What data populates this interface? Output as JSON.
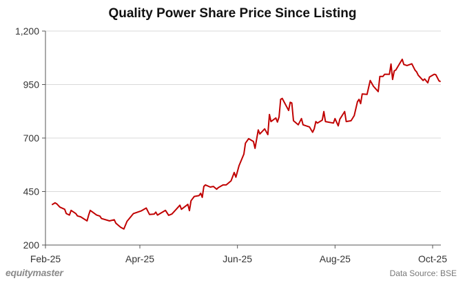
{
  "chart_data": {
    "type": "line",
    "title": "Quality Power Share Price Since Listing",
    "xlabel": "",
    "ylabel": "",
    "ylim": [
      200,
      1200
    ],
    "yticks": [
      "200",
      "450",
      "700",
      "950",
      "1,200"
    ],
    "ytick_values": [
      200,
      450,
      700,
      950,
      1200
    ],
    "xticks": [
      "Feb-25",
      "Apr-25",
      "Jun-25",
      "Aug-25",
      "Oct-25"
    ],
    "xtick_dates": [
      "2025-02-01",
      "2025-04-01",
      "2025-06-01",
      "2025-08-01",
      "2025-10-01"
    ],
    "grid": "horizontal",
    "line_color": "#c00000",
    "series": [
      {
        "points": [
          [
            "2025-02-05",
            388
          ],
          [
            "2025-02-07",
            397
          ],
          [
            "2025-02-08",
            393
          ],
          [
            "2025-02-10",
            377
          ],
          [
            "2025-02-13",
            367
          ],
          [
            "2025-02-14",
            347
          ],
          [
            "2025-02-16",
            340
          ],
          [
            "2025-02-17",
            362
          ],
          [
            "2025-02-20",
            347
          ],
          [
            "2025-02-21",
            336
          ],
          [
            "2025-02-23",
            332
          ],
          [
            "2025-02-27",
            313
          ],
          [
            "2025-02-28",
            340
          ],
          [
            "2025-03-01",
            362
          ],
          [
            "2025-03-05",
            340
          ],
          [
            "2025-03-07",
            335
          ],
          [
            "2025-03-08",
            324
          ],
          [
            "2025-03-13",
            313
          ],
          [
            "2025-03-16",
            318
          ],
          [
            "2025-03-17",
            302
          ],
          [
            "2025-03-20",
            283
          ],
          [
            "2025-03-22",
            275
          ],
          [
            "2025-03-24",
            311
          ],
          [
            "2025-03-28",
            347
          ],
          [
            "2025-04-02",
            360
          ],
          [
            "2025-04-05",
            373
          ],
          [
            "2025-04-07",
            343
          ],
          [
            "2025-04-10",
            345
          ],
          [
            "2025-04-11",
            354
          ],
          [
            "2025-04-12",
            340
          ],
          [
            "2025-04-17",
            362
          ],
          [
            "2025-04-19",
            339
          ],
          [
            "2025-04-21",
            345
          ],
          [
            "2025-04-24",
            369
          ],
          [
            "2025-04-26",
            386
          ],
          [
            "2025-04-27",
            367
          ],
          [
            "2025-05-01",
            390
          ],
          [
            "2025-05-02",
            361
          ],
          [
            "2025-05-03",
            407
          ],
          [
            "2025-05-05",
            427
          ],
          [
            "2025-05-08",
            431
          ],
          [
            "2025-05-09",
            442
          ],
          [
            "2025-05-10",
            423
          ],
          [
            "2025-05-11",
            474
          ],
          [
            "2025-05-12",
            481
          ],
          [
            "2025-05-15",
            471
          ],
          [
            "2025-05-17",
            474
          ],
          [
            "2025-05-19",
            461
          ],
          [
            "2025-05-20",
            468
          ],
          [
            "2025-05-23",
            481
          ],
          [
            "2025-05-25",
            481
          ],
          [
            "2025-05-28",
            500
          ],
          [
            "2025-05-30",
            539
          ],
          [
            "2025-05-31",
            517
          ],
          [
            "2025-06-02",
            571
          ],
          [
            "2025-06-05",
            625
          ],
          [
            "2025-06-06",
            676
          ],
          [
            "2025-06-08",
            697
          ],
          [
            "2025-06-11",
            684
          ],
          [
            "2025-06-12",
            652
          ],
          [
            "2025-06-14",
            738
          ],
          [
            "2025-06-15",
            719
          ],
          [
            "2025-06-18",
            743
          ],
          [
            "2025-06-20",
            716
          ],
          [
            "2025-06-21",
            810
          ],
          [
            "2025-06-22",
            777
          ],
          [
            "2025-06-25",
            794
          ],
          [
            "2025-06-26",
            775
          ],
          [
            "2025-06-27",
            799
          ],
          [
            "2025-06-28",
            881
          ],
          [
            "2025-06-29",
            885
          ],
          [
            "2025-07-03",
            829
          ],
          [
            "2025-07-04",
            867
          ],
          [
            "2025-07-05",
            864
          ],
          [
            "2025-07-06",
            781
          ],
          [
            "2025-07-09",
            762
          ],
          [
            "2025-07-11",
            791
          ],
          [
            "2025-07-12",
            762
          ],
          [
            "2025-07-16",
            752
          ],
          [
            "2025-07-18",
            727
          ],
          [
            "2025-07-19",
            743
          ],
          [
            "2025-07-20",
            777
          ],
          [
            "2025-07-21",
            770
          ],
          [
            "2025-07-24",
            784
          ],
          [
            "2025-07-25",
            824
          ],
          [
            "2025-07-26",
            777
          ],
          [
            "2025-07-31",
            770
          ],
          [
            "2025-08-01",
            791
          ],
          [
            "2025-08-03",
            757
          ],
          [
            "2025-08-04",
            788
          ],
          [
            "2025-08-07",
            824
          ],
          [
            "2025-08-08",
            777
          ],
          [
            "2025-08-11",
            781
          ],
          [
            "2025-08-13",
            805
          ],
          [
            "2025-08-15",
            870
          ],
          [
            "2025-08-16",
            881
          ],
          [
            "2025-08-17",
            861
          ],
          [
            "2025-08-18",
            906
          ],
          [
            "2025-08-21",
            904
          ],
          [
            "2025-08-23",
            969
          ],
          [
            "2025-08-25",
            942
          ],
          [
            "2025-08-28",
            917
          ],
          [
            "2025-08-29",
            988
          ],
          [
            "2025-08-31",
            988
          ],
          [
            "2025-09-01",
            998
          ],
          [
            "2025-09-04",
            998
          ],
          [
            "2025-09-05",
            1046
          ],
          [
            "2025-09-06",
            974
          ],
          [
            "2025-09-07",
            1014
          ],
          [
            "2025-09-08",
            1018
          ],
          [
            "2025-09-12",
            1068
          ],
          [
            "2025-09-13",
            1044
          ],
          [
            "2025-09-15",
            1039
          ],
          [
            "2025-09-18",
            1047
          ],
          [
            "2025-09-20",
            1017
          ],
          [
            "2025-09-21",
            1009
          ],
          [
            "2025-09-22",
            994
          ],
          [
            "2025-09-25",
            969
          ],
          [
            "2025-09-26",
            976
          ],
          [
            "2025-09-28",
            958
          ],
          [
            "2025-09-29",
            985
          ],
          [
            "2025-10-02",
            998
          ],
          [
            "2025-10-03",
            996
          ],
          [
            "2025-10-05",
            967
          ],
          [
            "2025-10-06",
            964
          ]
        ]
      }
    ]
  },
  "footer": {
    "brand": "equitymaster",
    "source": "Data Source: BSE"
  }
}
